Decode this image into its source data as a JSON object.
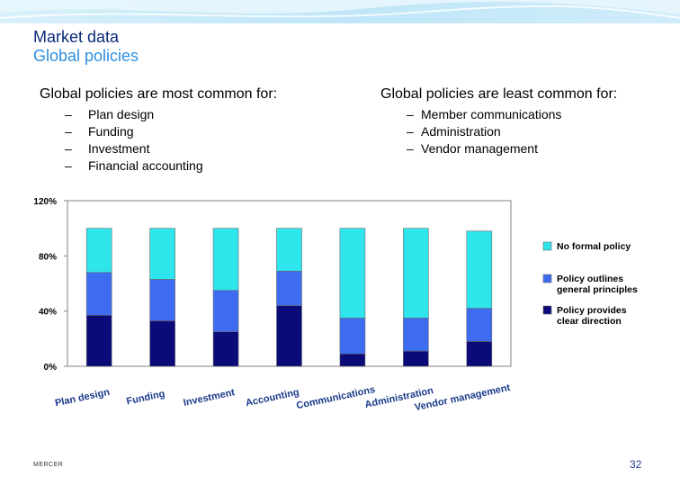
{
  "header": {
    "title": "Market data",
    "subtitle": "Global policies"
  },
  "left_column": {
    "heading": "Global policies are most common for:",
    "items": [
      "Plan design",
      "Funding",
      "Investment",
      "Financial accounting"
    ]
  },
  "right_column": {
    "heading": "Global policies are least common for:",
    "items": [
      "Member communications",
      "Administration",
      "Vendor management"
    ]
  },
  "footer": {
    "logo": "MERCER",
    "page_number": "32"
  },
  "colors": {
    "cyan": "#2ee5ec",
    "blue": "#3d6cf0",
    "navy": "#0a0a78",
    "title_dark": "#0b2a7a",
    "title_light": "#2e8fe0"
  },
  "chart_data": {
    "type": "bar",
    "stacked": true,
    "categories": [
      "Plan design",
      "Funding",
      "Investment",
      "Accounting",
      "Communications",
      "Administration",
      "Vendor management"
    ],
    "ylim": [
      0,
      120
    ],
    "yticks": [
      "0%",
      "40%",
      "80%",
      "120%"
    ],
    "series": [
      {
        "name": "Policy provides clear direction",
        "color": "#0a0a78",
        "values": [
          37,
          33,
          25,
          44,
          9,
          11,
          18
        ]
      },
      {
        "name": "Policy outlines general principles",
        "color": "#3d6cf0",
        "values": [
          31,
          30,
          30,
          25,
          26,
          24,
          24
        ]
      },
      {
        "name": "No formal policy",
        "color": "#2ee5ec",
        "values": [
          32,
          37,
          45,
          31,
          65,
          65,
          56
        ]
      }
    ],
    "legend_order": [
      "No formal policy",
      "Policy outlines general principles",
      "Policy provides clear direction"
    ],
    "legend_position": "right"
  }
}
